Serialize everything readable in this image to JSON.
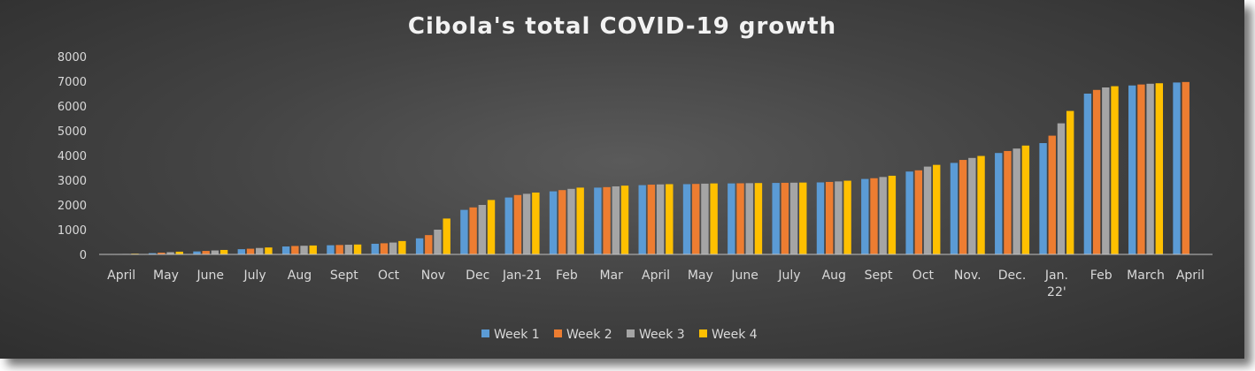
{
  "chart_data": {
    "type": "bar",
    "title": "Cibola's total COVID-19 growth",
    "xlabel": "",
    "ylabel": "",
    "ylim": [
      0,
      8000
    ],
    "yticks": [
      0,
      1000,
      2000,
      3000,
      4000,
      5000,
      6000,
      7000,
      8000
    ],
    "grid": false,
    "legend": "bottom",
    "series": [
      {
        "name": "Week 1",
        "color": "#5b9bd5"
      },
      {
        "name": "Week 2",
        "color": "#ed7d31"
      },
      {
        "name": "Week 3",
        "color": "#a5a5a5"
      },
      {
        "name": "Week 4",
        "color": "#ffc000"
      }
    ],
    "groups": [
      {
        "label": "April",
        "values": [
          5,
          10,
          20,
          30
        ]
      },
      {
        "label": "May",
        "values": [
          50,
          70,
          90,
          110
        ]
      },
      {
        "label": "June",
        "values": [
          120,
          140,
          160,
          180
        ]
      },
      {
        "label": "July",
        "values": [
          210,
          230,
          260,
          280
        ]
      },
      {
        "label": "Aug",
        "values": [
          320,
          340,
          350,
          360
        ]
      },
      {
        "label": "Sept",
        "values": [
          370,
          380,
          390,
          400
        ]
      },
      {
        "label": "Oct",
        "values": [
          430,
          450,
          480,
          540
        ]
      },
      {
        "label": "Nov",
        "values": [
          650,
          780,
          1000,
          1450
        ]
      },
      {
        "label": "Dec",
        "values": [
          1800,
          1900,
          2000,
          2200
        ]
      },
      {
        "label": "Jan-21",
        "values": [
          2300,
          2400,
          2450,
          2500
        ]
      },
      {
        "label": "Feb",
        "values": [
          2550,
          2600,
          2650,
          2700
        ]
      },
      {
        "label": "Mar",
        "values": [
          2700,
          2720,
          2750,
          2780
        ]
      },
      {
        "label": "April",
        "values": [
          2800,
          2820,
          2830,
          2840
        ]
      },
      {
        "label": "May",
        "values": [
          2840,
          2850,
          2860,
          2870
        ]
      },
      {
        "label": "June",
        "values": [
          2870,
          2875,
          2880,
          2885
        ]
      },
      {
        "label": "July",
        "values": [
          2890,
          2895,
          2900,
          2905
        ]
      },
      {
        "label": "Aug",
        "values": [
          2910,
          2930,
          2950,
          2980
        ]
      },
      {
        "label": "Sept",
        "values": [
          3050,
          3080,
          3130,
          3180
        ]
      },
      {
        "label": "Oct",
        "values": [
          3350,
          3400,
          3550,
          3620
        ]
      },
      {
        "label": "Nov.",
        "values": [
          3700,
          3820,
          3900,
          3980
        ]
      },
      {
        "label": "Dec.",
        "values": [
          4100,
          4180,
          4280,
          4400
        ]
      },
      {
        "label": "Jan.\n22'",
        "values": [
          4500,
          4800,
          5300,
          5800
        ]
      },
      {
        "label": "Feb",
        "values": [
          6500,
          6650,
          6750,
          6800
        ]
      },
      {
        "label": "March",
        "values": [
          6830,
          6870,
          6900,
          6920
        ]
      },
      {
        "label": "April",
        "values": [
          6950,
          6970
        ]
      }
    ]
  }
}
